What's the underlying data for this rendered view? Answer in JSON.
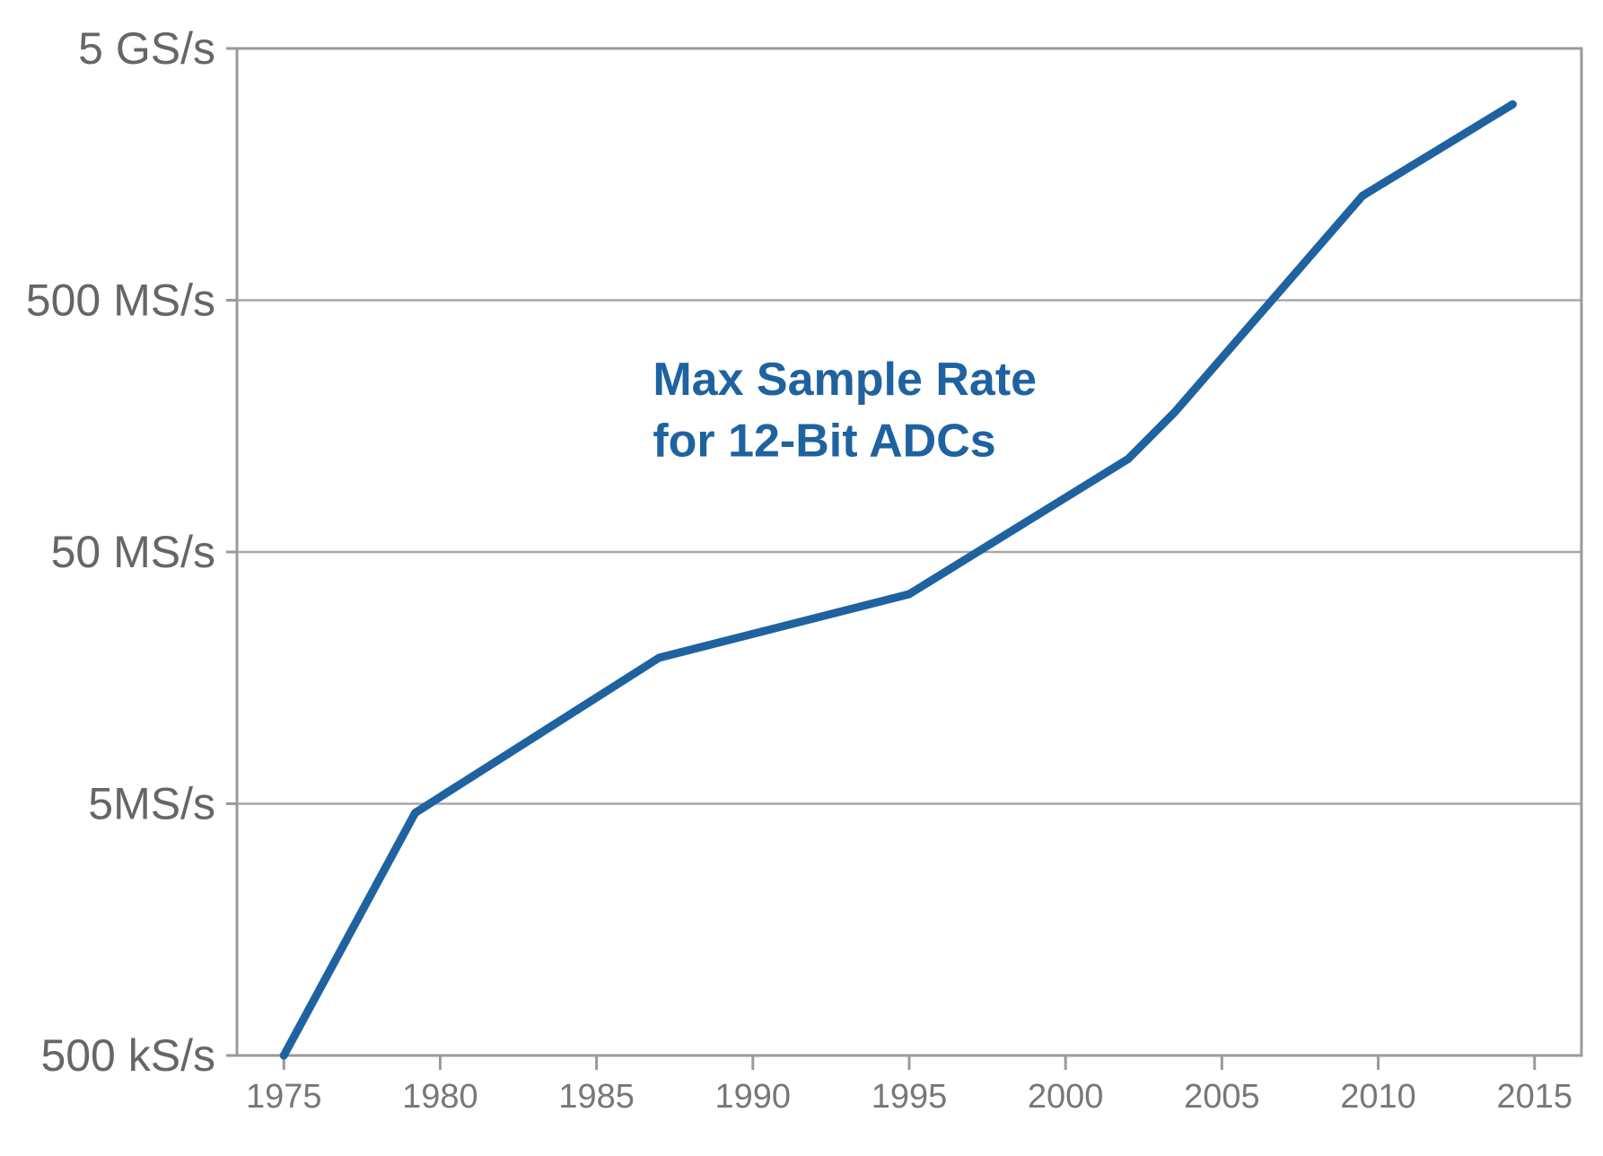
{
  "chart_data": {
    "type": "line",
    "title": "",
    "xlabel": "",
    "ylabel": "",
    "yscale": "log",
    "xlim": [
      1973.5,
      2016.5
    ],
    "ylim": [
      500000,
      5000000000
    ],
    "xticks": [
      1975,
      1980,
      1985,
      1990,
      1995,
      2000,
      2005,
      2010,
      2015
    ],
    "yticks": [
      {
        "value": 500000,
        "label": "500 kS/s"
      },
      {
        "value": 5000000,
        "label": "5MS/s"
      },
      {
        "value": 50000000,
        "label": "50 MS/s"
      },
      {
        "value": 500000000,
        "label": "500 MS/s"
      },
      {
        "value": 5000000000,
        "label": "5 GS/s"
      }
    ],
    "grid": "horizontal",
    "series": [
      {
        "color": "#1f62a0",
        "x": [
          1975.0,
          1979.2,
          1987.0,
          1995.0,
          2002.0,
          2003.5,
          2009.5,
          2014.3
        ],
        "y": [
          500000,
          4600000,
          19000000,
          34000000,
          117000000,
          180000000,
          1300000000,
          3000000000
        ]
      }
    ],
    "annotations": [
      {
        "text": "Max Sample Rate",
        "x": 1986.8,
        "y": 210000000,
        "color": "#1f62a0"
      },
      {
        "text": "for 12-Bit ADCs",
        "x": 1986.8,
        "y": 120000000,
        "color": "#1f62a0"
      }
    ]
  }
}
